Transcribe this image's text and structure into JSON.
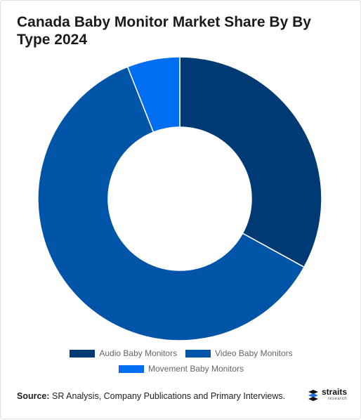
{
  "chart_data": {
    "type": "pie",
    "title": "Canada Baby Monitor Market Share By By Type 2024",
    "categories": [
      "Audio Baby Monitors",
      "Video Baby Monitors",
      "Movement Baby Monitors"
    ],
    "values": [
      33,
      61,
      6
    ],
    "colors": [
      "#003a75",
      "#0055a9",
      "#006ef0"
    ],
    "legend": "bottom",
    "donut": true
  },
  "source": {
    "label": "Source:",
    "text": " SR Analysis, Company Publications and Primary Interviews."
  },
  "logo": {
    "name": "straits",
    "sub": "research"
  }
}
